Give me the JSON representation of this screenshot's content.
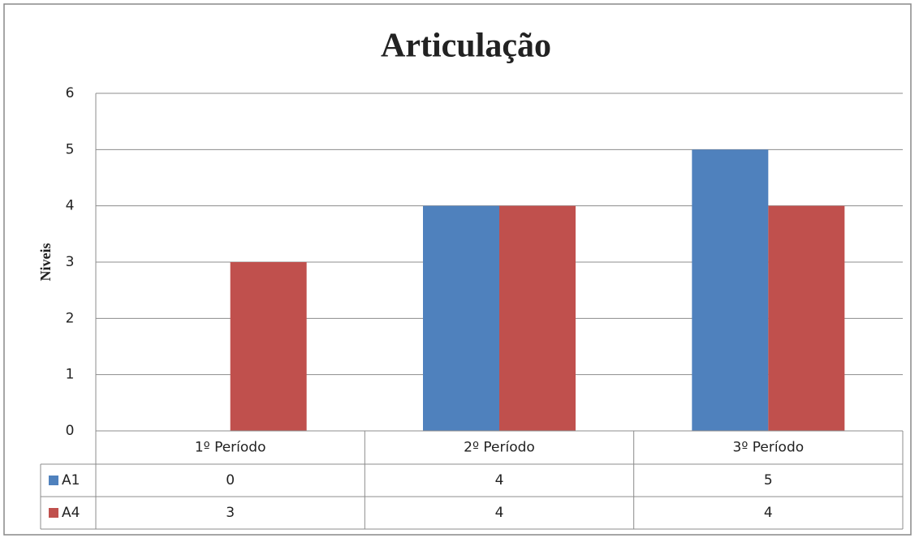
{
  "chart_data": {
    "type": "bar",
    "title": "Articulação",
    "y_label": "Niveis",
    "categories": [
      "1º Período",
      "2º Período",
      "3º Período"
    ],
    "series": [
      {
        "name": "A1",
        "color": "#4f81bd",
        "values": [
          0,
          4,
          5
        ]
      },
      {
        "name": "A4",
        "color": "#c0504d",
        "values": [
          3,
          4,
          4
        ]
      }
    ],
    "ylim": [
      0,
      6
    ],
    "yticks": [
      0,
      1,
      2,
      3,
      4,
      5,
      6
    ],
    "grid": true
  }
}
